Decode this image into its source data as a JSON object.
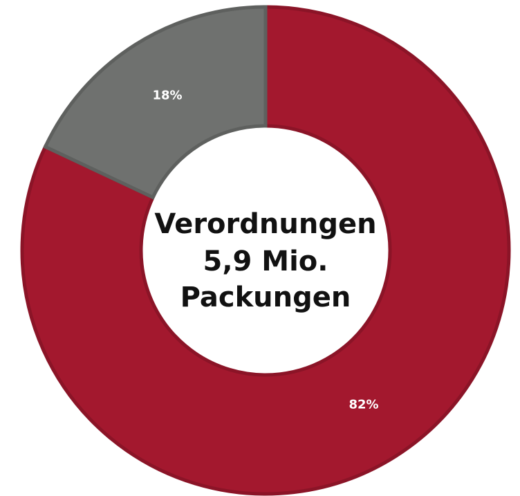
{
  "chart_data": {
    "type": "pie",
    "donut": true,
    "values": [
      82,
      18
    ],
    "value_labels": [
      "82%",
      "18%"
    ],
    "colors": [
      "#a3182e",
      "#6f716f"
    ],
    "center_text": [
      "Verordnungen",
      "5,9 Mio.",
      "Packungen"
    ]
  }
}
